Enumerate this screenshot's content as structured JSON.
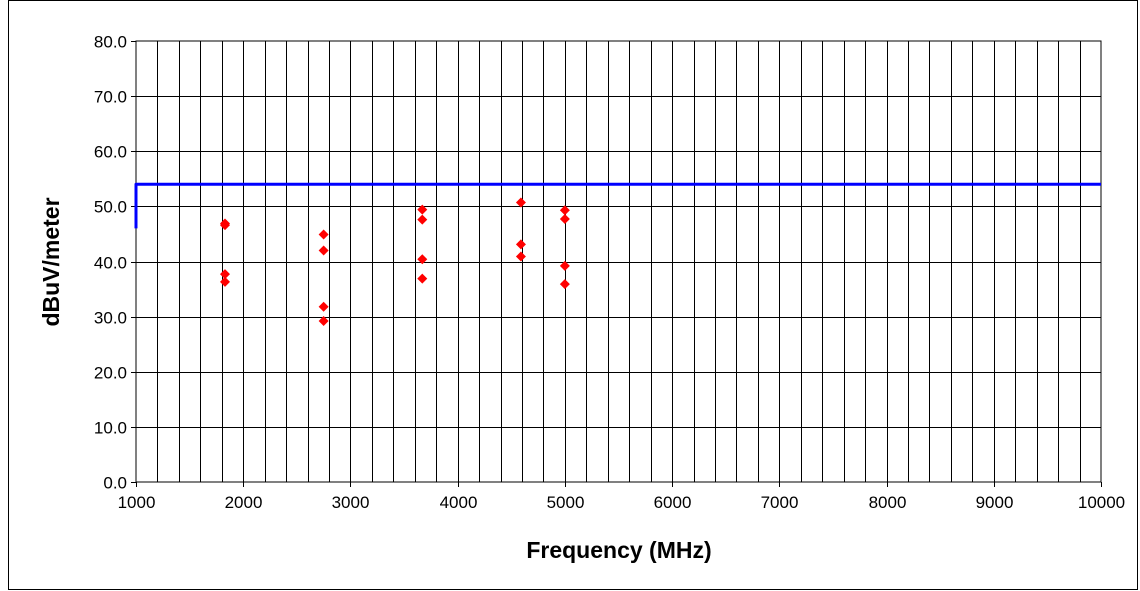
{
  "chart_data": {
    "type": "scatter",
    "title": "",
    "xlabel": "Frequency (MHz)",
    "ylabel": "dBuV/meter",
    "xlim": [
      1000,
      10000
    ],
    "ylim": [
      0,
      80
    ],
    "x_ticks": [
      1000,
      2000,
      3000,
      4000,
      5000,
      6000,
      7000,
      8000,
      9000,
      10000
    ],
    "x_tick_labels": [
      "1000",
      "2000",
      "3000",
      "4000",
      "5000",
      "6000",
      "7000",
      "8000",
      "9000",
      "10000"
    ],
    "y_ticks": [
      0,
      10,
      20,
      30,
      40,
      50,
      60,
      70,
      80
    ],
    "y_tick_labels": [
      "0.0",
      "10.0",
      "20.0",
      "30.0",
      "40.0",
      "50.0",
      "60.0",
      "70.0",
      "80.0"
    ],
    "x_minor_step": 200,
    "grid": true,
    "legend": "none",
    "series": [
      {
        "kind": "line",
        "color": "#0000FF",
        "x": [
          1000,
          1000,
          10000
        ],
        "y": [
          46,
          54,
          54
        ]
      },
      {
        "kind": "scatter",
        "marker": "diamond",
        "color": "#FF0000",
        "x": [
          1830,
          1830,
          1830,
          1830,
          2750,
          2750,
          2750,
          2750,
          3670,
          3670,
          3670,
          3670,
          4590,
          4590,
          4590,
          5000,
          5000,
          5000,
          5000
        ],
        "y": [
          46.9,
          46.6,
          37.7,
          36.3,
          44.9,
          42.0,
          31.8,
          29.2,
          49.4,
          47.6,
          40.4,
          36.9,
          50.7,
          43.1,
          40.9,
          49.3,
          47.7,
          39.2,
          35.9
        ]
      }
    ]
  }
}
